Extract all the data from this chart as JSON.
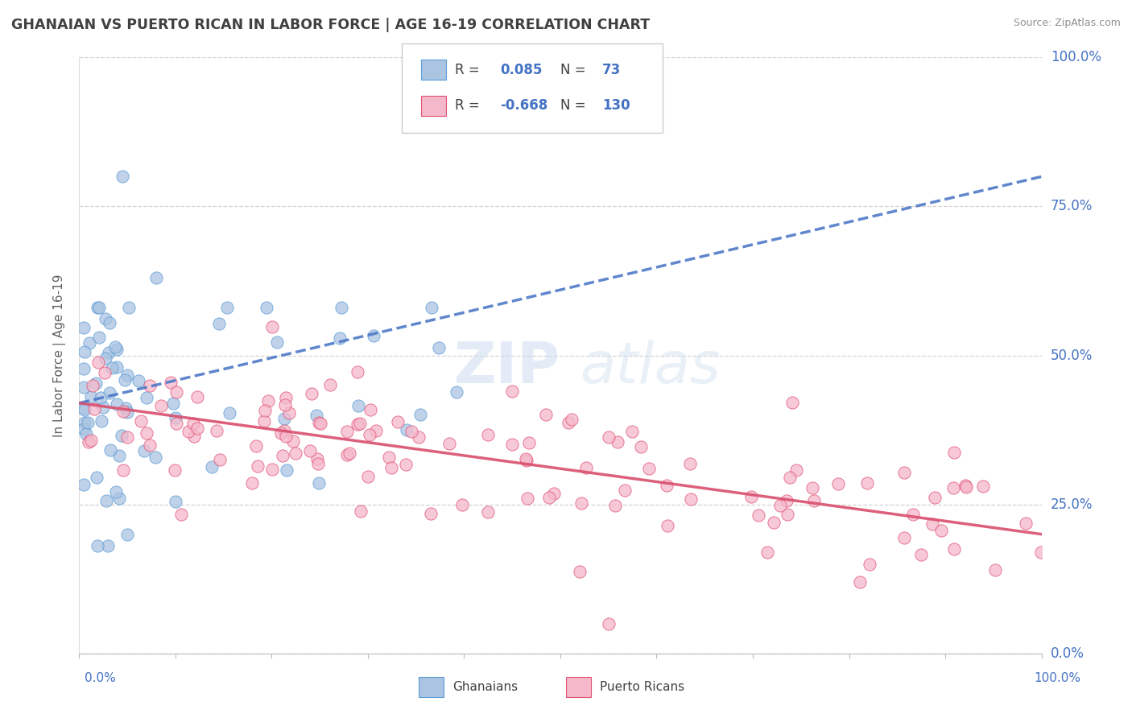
{
  "title": "GHANAIAN VS PUERTO RICAN IN LABOR FORCE | AGE 16-19 CORRELATION CHART",
  "source": "Source: ZipAtlas.com",
  "ylabel": "In Labor Force | Age 16-19",
  "xlim": [
    0,
    100
  ],
  "ylim": [
    0,
    100
  ],
  "ytick_labels": [
    "0.0%",
    "25.0%",
    "50.0%",
    "75.0%",
    "100.0%"
  ],
  "ytick_values": [
    0,
    25,
    50,
    75,
    100
  ],
  "ghanaian_color": "#aac4e2",
  "ghanaian_edge": "#5b9bd5",
  "puerto_rican_color": "#f5b8cb",
  "puerto_rican_edge": "#e05070",
  "blue_line_color": "#4472c4",
  "pink_line_color": "#d94f6e",
  "axis_label_color": "#4472c4",
  "title_color": "#404040",
  "source_color": "#909090",
  "grid_color": "#c8c8c8",
  "background_color": "#ffffff",
  "watermark_color": "#d0dff0",
  "ylabel_color": "#606060",
  "legend_text_color": "#404040",
  "legend_value_color": "#4472c4",
  "gh_R": "0.085",
  "gh_N": "73",
  "pr_R": "-0.668",
  "pr_N": "130",
  "gh_trend_start_x": 0,
  "gh_trend_start_y": 42,
  "gh_trend_end_x": 100,
  "gh_trend_end_y": 80,
  "pr_trend_start_x": 0,
  "pr_trend_start_y": 42,
  "pr_trend_end_x": 100,
  "pr_trend_end_y": 20
}
